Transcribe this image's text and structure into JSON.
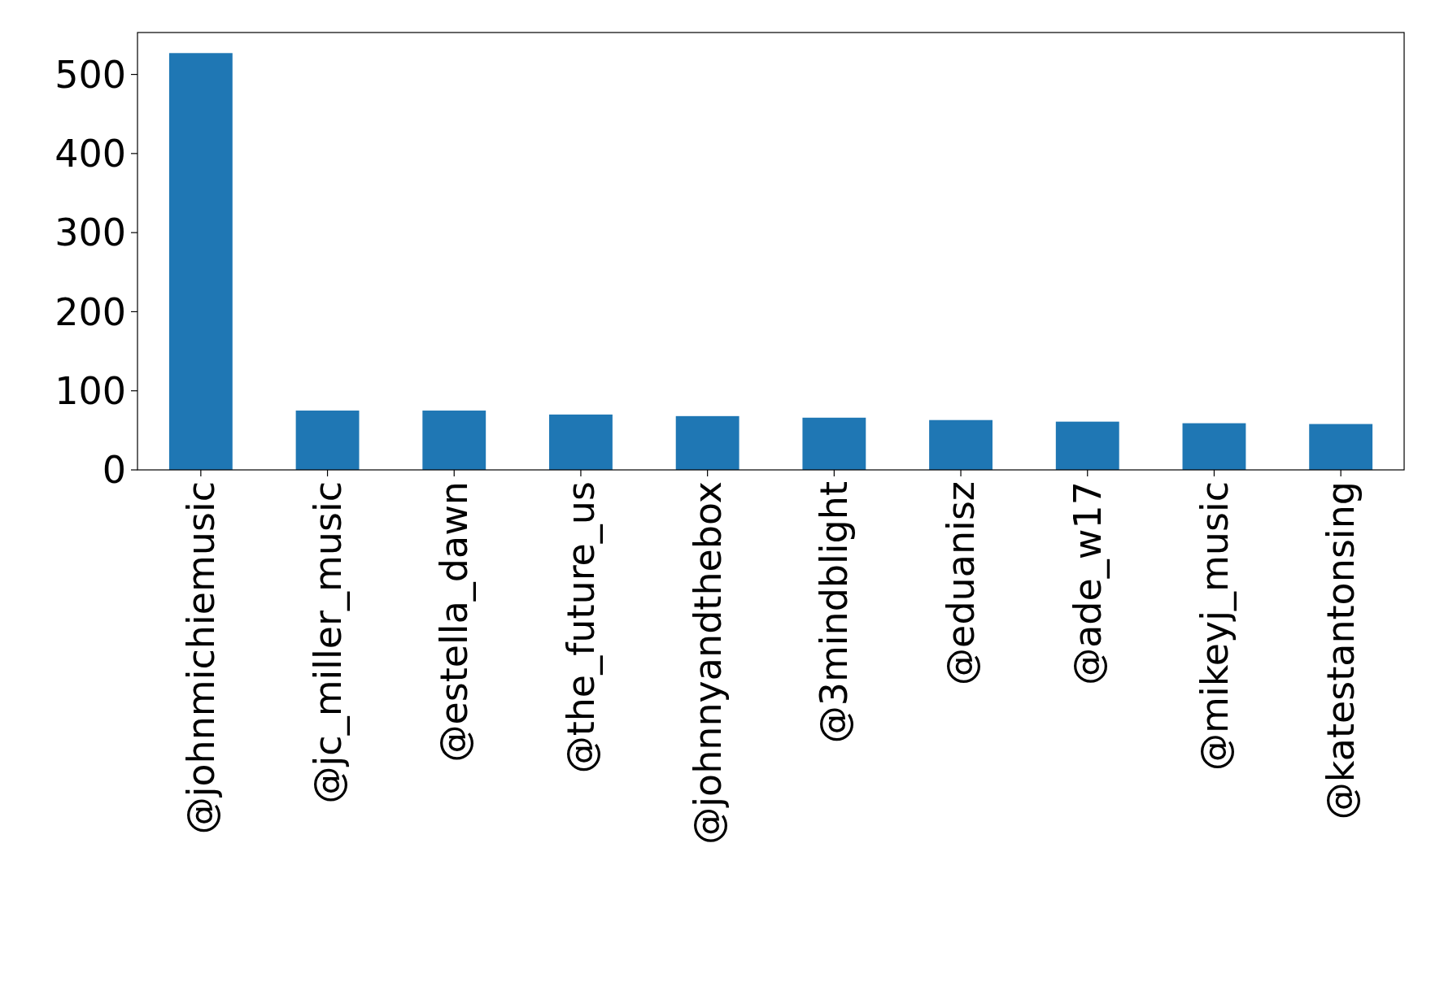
{
  "chart_data": {
    "type": "bar",
    "categories": [
      "@johnmichiemusic",
      "@jc_miller_music",
      "@estella_dawn",
      "@the_future_us",
      "@johnnyandthebox",
      "@3mindblight",
      "@eduanisz",
      "@ade_w17",
      "@mikeyj_music",
      "@katestantonsing"
    ],
    "values": [
      527,
      75,
      75,
      70,
      68,
      66,
      63,
      61,
      59,
      58
    ],
    "color": "#1f77b4",
    "ylim": [
      0,
      553
    ],
    "yticks": [
      0,
      100,
      200,
      300,
      400,
      500
    ]
  }
}
